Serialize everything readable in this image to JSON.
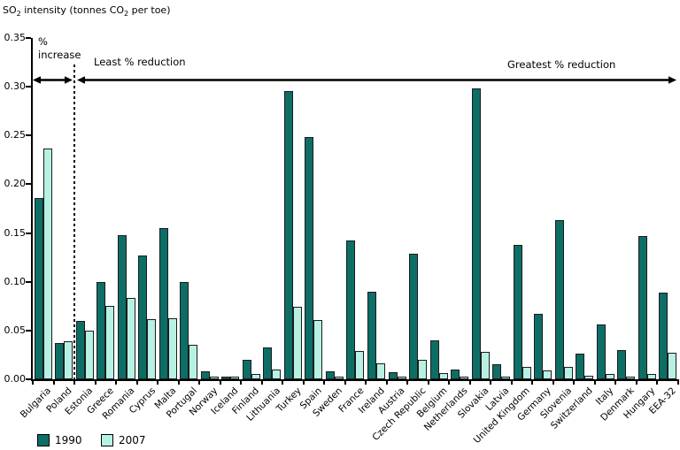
{
  "title_parts": [
    {
      "t": "SO"
    },
    {
      "t": "2",
      "sub": true
    },
    {
      "t": " intensity (tonnes CO"
    },
    {
      "t": "2",
      "sub": true
    },
    {
      "t": " per toe)"
    }
  ],
  "annotations": {
    "increase_line1": "%",
    "increase_line2": "increase",
    "least_label": "Least % reduction",
    "greatest_label": "Greatest % reduction"
  },
  "chart_data": {
    "type": "bar",
    "title": "SO2 intensity (tonnes CO2 per toe)",
    "ylabel": "SO2 intensity (tonnes CO2 per toe)",
    "xlabel": "",
    "grid": false,
    "legend_position": "bottom-left",
    "ylim": [
      0,
      0.35
    ],
    "ytick_labels": [
      "0.35",
      "0.30",
      "0.25",
      "0.20",
      "0.15",
      "0.10",
      "0.05",
      "0.00"
    ],
    "categories": [
      "Bulgaria",
      "Poland",
      "Estonia",
      "Greece",
      "Romania",
      "Cyprus",
      "Malta",
      "Portugal",
      "Norway",
      "Iceland",
      "Finland",
      "Lithuania",
      "Turkey",
      "Spain",
      "Sweden",
      "France",
      "Ireland",
      "Austria",
      "Czech Republic",
      "Belgium",
      "Netherlands",
      "Slovakia",
      "Latvia",
      "United Kingdom",
      "Germany",
      "Slovenia",
      "Switzerland",
      "Italy",
      "Denmark",
      "Hungary",
      "EEA-32"
    ],
    "series": [
      {
        "name": "1990",
        "color": "#0D6E66",
        "values": [
          0.186,
          0.037,
          0.06,
          0.1,
          0.148,
          0.127,
          0.155,
          0.1,
          0.008,
          0.002,
          0.02,
          0.033,
          0.296,
          0.248,
          0.008,
          0.142,
          0.09,
          0.007,
          0.129,
          0.04,
          0.01,
          0.298,
          0.015,
          0.138,
          0.067,
          0.163,
          0.026,
          0.056,
          0.03,
          0.147,
          0.089
        ]
      },
      {
        "name": "2007",
        "color": "#B7F1E3",
        "values": [
          0.237,
          0.039,
          0.05,
          0.075,
          0.083,
          0.062,
          0.063,
          0.035,
          0.003,
          0.001,
          0.005,
          0.01,
          0.074,
          0.061,
          0.003,
          0.029,
          0.016,
          0.001,
          0.02,
          0.006,
          0.001,
          0.028,
          0.002,
          0.013,
          0.009,
          0.013,
          0.004,
          0.005,
          0.003,
          0.005,
          0.027
        ]
      }
    ],
    "region_annotations": [
      "% increase",
      "Least % reduction",
      "Greatest % reduction"
    ]
  }
}
